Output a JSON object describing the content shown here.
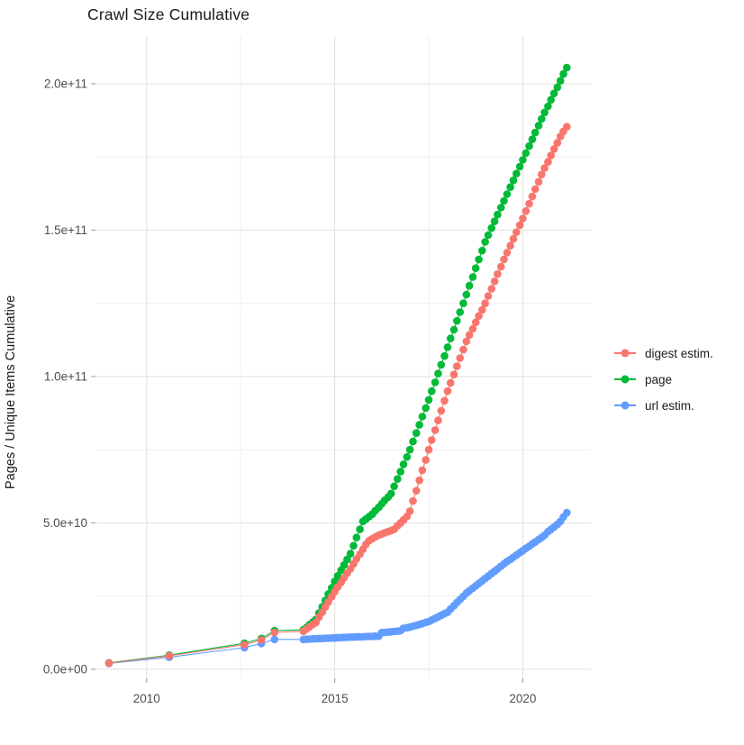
{
  "figure": {
    "title": "Crawl Size Cumulative",
    "y_axis_title": "Pages / Unique Items Cumulative"
  },
  "legend": {
    "position": "right",
    "items": [
      {
        "label": "digest estim.",
        "color": "#F8766D"
      },
      {
        "label": "page",
        "color": "#00BA38"
      },
      {
        "label": "url estim.",
        "color": "#619CFF"
      }
    ]
  },
  "colors": {
    "grid_major": "#e2e2e2",
    "grid_minor": "#efefef",
    "tick_mark": "#a8a8a8",
    "tick_label": "#4d4d4d",
    "title_text": "#1a1a1a"
  },
  "chart_data": {
    "type": "line",
    "title": "Crawl Size Cumulative",
    "xlabel": "",
    "ylabel": "Pages / Unique Items Cumulative",
    "note": "points are [year, cumulative items]; values stored in billions (1e9)",
    "value_unit_e9": true,
    "x_domain": [
      2008.64,
      2021.81
    ],
    "y_domain_e9": [
      -3.1,
      216.3
    ],
    "grid": true,
    "legend_position": "right",
    "x_ticks": [
      {
        "value": 2010,
        "label": "2010"
      },
      {
        "value": 2015,
        "label": "2015"
      },
      {
        "value": 2020,
        "label": "2020"
      }
    ],
    "x_minor": [
      2012.5,
      2017.5
    ],
    "y_ticks": [
      {
        "value_e9": 0,
        "label": "0.0e+00"
      },
      {
        "value_e9": 50,
        "label": "5.0e+10"
      },
      {
        "value_e9": 100,
        "label": "1.0e+11"
      },
      {
        "value_e9": 150,
        "label": "1.5e+11"
      },
      {
        "value_e9": 200,
        "label": "2.0e+11"
      }
    ],
    "y_minor_e9": [
      25,
      75,
      125,
      175
    ],
    "draw_order": [
      "page",
      "url estim.",
      "digest estim."
    ],
    "series": [
      {
        "name": "digest estim.",
        "color": "#F8766D",
        "points": [
          [
            2009.0,
            2.1
          ],
          [
            2010.6,
            4.6
          ],
          [
            2012.6,
            8.4
          ],
          [
            2013.05,
            10
          ],
          [
            2013.4,
            12.6
          ],
          [
            2014.17,
            13
          ],
          [
            2014.25,
            13.8
          ],
          [
            2014.33,
            14.5
          ],
          [
            2014.42,
            15.3
          ],
          [
            2014.5,
            16
          ],
          [
            2014.58,
            17.8
          ],
          [
            2014.67,
            19.5
          ],
          [
            2014.75,
            21.3
          ],
          [
            2014.83,
            23
          ],
          [
            2014.92,
            24.8
          ],
          [
            2015.0,
            26.5
          ],
          [
            2015.08,
            28.1
          ],
          [
            2015.17,
            29.7
          ],
          [
            2015.25,
            31.2
          ],
          [
            2015.33,
            32.8
          ],
          [
            2015.42,
            34.3
          ],
          [
            2015.5,
            36
          ],
          [
            2015.58,
            37.7
          ],
          [
            2015.67,
            39.3
          ],
          [
            2015.75,
            41
          ],
          [
            2015.83,
            42.7
          ],
          [
            2015.92,
            44
          ],
          [
            2016.0,
            44.6
          ],
          [
            2016.08,
            45.2
          ],
          [
            2016.17,
            45.8
          ],
          [
            2016.25,
            46.2
          ],
          [
            2016.33,
            46.6
          ],
          [
            2016.42,
            47
          ],
          [
            2016.5,
            47.4
          ],
          [
            2016.58,
            47.8
          ],
          [
            2016.67,
            49
          ],
          [
            2016.75,
            50
          ],
          [
            2016.83,
            51
          ],
          [
            2016.92,
            52.2
          ],
          [
            2017.0,
            54
          ],
          [
            2017.08,
            57.5
          ],
          [
            2017.17,
            61
          ],
          [
            2017.25,
            64.5
          ],
          [
            2017.33,
            68
          ],
          [
            2017.42,
            71.5
          ],
          [
            2017.5,
            75
          ],
          [
            2017.58,
            78.3
          ],
          [
            2017.67,
            81.7
          ],
          [
            2017.75,
            85
          ],
          [
            2017.83,
            88.3
          ],
          [
            2017.92,
            91.7
          ],
          [
            2018.0,
            95
          ],
          [
            2018.08,
            97.8
          ],
          [
            2018.17,
            100.7
          ],
          [
            2018.25,
            103.5
          ],
          [
            2018.33,
            106.3
          ],
          [
            2018.42,
            109.2
          ],
          [
            2018.5,
            112
          ],
          [
            2018.58,
            114.2
          ],
          [
            2018.67,
            116.3
          ],
          [
            2018.75,
            118.5
          ],
          [
            2018.83,
            120.7
          ],
          [
            2018.92,
            122.8
          ],
          [
            2019.0,
            125
          ],
          [
            2019.08,
            127.5
          ],
          [
            2019.17,
            130
          ],
          [
            2019.25,
            132.5
          ],
          [
            2019.33,
            135
          ],
          [
            2019.42,
            137.5
          ],
          [
            2019.5,
            140
          ],
          [
            2019.58,
            142.3
          ],
          [
            2019.67,
            144.7
          ],
          [
            2019.75,
            147
          ],
          [
            2019.83,
            149.3
          ],
          [
            2019.92,
            151.7
          ],
          [
            2020.0,
            154
          ],
          [
            2020.08,
            156.5
          ],
          [
            2020.17,
            159
          ],
          [
            2020.25,
            161.5
          ],
          [
            2020.33,
            164
          ],
          [
            2020.42,
            166.5
          ],
          [
            2020.5,
            169
          ],
          [
            2020.58,
            171.2
          ],
          [
            2020.67,
            173.3
          ],
          [
            2020.75,
            175.5
          ],
          [
            2020.83,
            177.7
          ],
          [
            2020.92,
            179.8
          ],
          [
            2021.0,
            182
          ],
          [
            2021.08,
            183.7
          ],
          [
            2021.17,
            185.3
          ]
        ]
      },
      {
        "name": "page",
        "color": "#00BA38",
        "points": [
          [
            2009.0,
            2.2
          ],
          [
            2010.6,
            4.8
          ],
          [
            2012.6,
            8.9
          ],
          [
            2013.05,
            10.5
          ],
          [
            2013.4,
            13.2
          ],
          [
            2014.17,
            13.5
          ],
          [
            2014.25,
            14.3
          ],
          [
            2014.33,
            15.2
          ],
          [
            2014.42,
            16.1
          ],
          [
            2014.5,
            17
          ],
          [
            2014.58,
            19.2
          ],
          [
            2014.67,
            21.3
          ],
          [
            2014.75,
            23.5
          ],
          [
            2014.83,
            25.7
          ],
          [
            2014.92,
            27.8
          ],
          [
            2015.0,
            30
          ],
          [
            2015.08,
            31.9
          ],
          [
            2015.17,
            33.8
          ],
          [
            2015.25,
            35.6
          ],
          [
            2015.33,
            37.5
          ],
          [
            2015.42,
            39.5
          ],
          [
            2015.5,
            42.2
          ],
          [
            2015.58,
            45
          ],
          [
            2015.67,
            47.8
          ],
          [
            2015.75,
            50.5
          ],
          [
            2015.83,
            51.3
          ],
          [
            2015.92,
            52.2
          ],
          [
            2016.0,
            53
          ],
          [
            2016.08,
            54.2
          ],
          [
            2016.17,
            55.3
          ],
          [
            2016.25,
            56.5
          ],
          [
            2016.33,
            57.7
          ],
          [
            2016.42,
            58.8
          ],
          [
            2016.5,
            60
          ],
          [
            2016.58,
            62.5
          ],
          [
            2016.67,
            65
          ],
          [
            2016.75,
            67.5
          ],
          [
            2016.83,
            70
          ],
          [
            2016.92,
            72.5
          ],
          [
            2017.0,
            75
          ],
          [
            2017.08,
            77.8
          ],
          [
            2017.17,
            80.7
          ],
          [
            2017.25,
            83.5
          ],
          [
            2017.33,
            86.3
          ],
          [
            2017.42,
            89.2
          ],
          [
            2017.5,
            92
          ],
          [
            2017.58,
            95
          ],
          [
            2017.67,
            98
          ],
          [
            2017.75,
            101
          ],
          [
            2017.83,
            104
          ],
          [
            2017.92,
            107
          ],
          [
            2018.0,
            110
          ],
          [
            2018.08,
            113
          ],
          [
            2018.17,
            116
          ],
          [
            2018.25,
            119
          ],
          [
            2018.33,
            122
          ],
          [
            2018.42,
            125
          ],
          [
            2018.5,
            128
          ],
          [
            2018.58,
            131
          ],
          [
            2018.67,
            134
          ],
          [
            2018.75,
            137
          ],
          [
            2018.83,
            140
          ],
          [
            2018.92,
            143
          ],
          [
            2019.0,
            146
          ],
          [
            2019.08,
            148.3
          ],
          [
            2019.17,
            150.7
          ],
          [
            2019.25,
            153
          ],
          [
            2019.33,
            155.3
          ],
          [
            2019.42,
            157.7
          ],
          [
            2019.5,
            160
          ],
          [
            2019.58,
            162.3
          ],
          [
            2019.67,
            164.7
          ],
          [
            2019.75,
            167
          ],
          [
            2019.83,
            169.3
          ],
          [
            2019.92,
            171.7
          ],
          [
            2020.0,
            174
          ],
          [
            2020.08,
            176.3
          ],
          [
            2020.17,
            178.7
          ],
          [
            2020.25,
            181
          ],
          [
            2020.33,
            183.3
          ],
          [
            2020.42,
            185.7
          ],
          [
            2020.5,
            188
          ],
          [
            2020.58,
            190.2
          ],
          [
            2020.67,
            192.3
          ],
          [
            2020.75,
            194.5
          ],
          [
            2020.83,
            196.7
          ],
          [
            2020.92,
            198.8
          ],
          [
            2021.0,
            201
          ],
          [
            2021.08,
            203.3
          ],
          [
            2021.17,
            205.5
          ]
        ]
      },
      {
        "name": "url estim.",
        "color": "#619CFF",
        "points": [
          [
            2009.0,
            2.0
          ],
          [
            2010.6,
            4.1
          ],
          [
            2012.6,
            7.4
          ],
          [
            2013.05,
            8.8
          ],
          [
            2013.4,
            10.2
          ],
          [
            2014.17,
            10.2
          ],
          [
            2014.25,
            10.3
          ],
          [
            2014.33,
            10.3
          ],
          [
            2014.42,
            10.4
          ],
          [
            2014.5,
            10.4
          ],
          [
            2014.58,
            10.5
          ],
          [
            2014.67,
            10.5
          ],
          [
            2014.75,
            10.6
          ],
          [
            2014.83,
            10.6
          ],
          [
            2014.92,
            10.7
          ],
          [
            2015.0,
            10.7
          ],
          [
            2015.08,
            10.8
          ],
          [
            2015.17,
            10.8
          ],
          [
            2015.25,
            10.9
          ],
          [
            2015.33,
            10.9
          ],
          [
            2015.42,
            11
          ],
          [
            2015.5,
            11
          ],
          [
            2015.58,
            11.1
          ],
          [
            2015.67,
            11.1
          ],
          [
            2015.75,
            11.1
          ],
          [
            2015.83,
            11.2
          ],
          [
            2015.92,
            11.2
          ],
          [
            2016.0,
            11.2
          ],
          [
            2016.08,
            11.3
          ],
          [
            2016.17,
            11.3
          ],
          [
            2016.25,
            12.5
          ],
          [
            2016.33,
            12.6
          ],
          [
            2016.42,
            12.7
          ],
          [
            2016.5,
            12.8
          ],
          [
            2016.58,
            12.9
          ],
          [
            2016.67,
            13
          ],
          [
            2016.75,
            13.2
          ],
          [
            2016.83,
            14
          ],
          [
            2016.92,
            14.2
          ],
          [
            2017.0,
            14.4
          ],
          [
            2017.08,
            14.7
          ],
          [
            2017.17,
            15
          ],
          [
            2017.25,
            15.3
          ],
          [
            2017.33,
            15.6
          ],
          [
            2017.42,
            16
          ],
          [
            2017.5,
            16.3
          ],
          [
            2017.58,
            16.8
          ],
          [
            2017.67,
            17.4
          ],
          [
            2017.75,
            17.9
          ],
          [
            2017.83,
            18.4
          ],
          [
            2017.92,
            19
          ],
          [
            2018.0,
            19.5
          ],
          [
            2018.08,
            20.6
          ],
          [
            2018.17,
            21.7
          ],
          [
            2018.25,
            22.8
          ],
          [
            2018.33,
            23.8
          ],
          [
            2018.42,
            24.9
          ],
          [
            2018.5,
            26
          ],
          [
            2018.58,
            26.8
          ],
          [
            2018.67,
            27.7
          ],
          [
            2018.75,
            28.5
          ],
          [
            2018.83,
            29.3
          ],
          [
            2018.92,
            30.2
          ],
          [
            2019.0,
            31
          ],
          [
            2019.08,
            31.8
          ],
          [
            2019.17,
            32.7
          ],
          [
            2019.25,
            33.5
          ],
          [
            2019.33,
            34.3
          ],
          [
            2019.42,
            35.2
          ],
          [
            2019.5,
            36
          ],
          [
            2019.58,
            36.8
          ],
          [
            2019.67,
            37.5
          ],
          [
            2019.75,
            38.3
          ],
          [
            2019.83,
            39
          ],
          [
            2019.92,
            39.8
          ],
          [
            2020.0,
            40.5
          ],
          [
            2020.08,
            41.3
          ],
          [
            2020.17,
            42
          ],
          [
            2020.25,
            42.8
          ],
          [
            2020.33,
            43.5
          ],
          [
            2020.42,
            44.3
          ],
          [
            2020.5,
            45
          ],
          [
            2020.58,
            45.8
          ],
          [
            2020.67,
            47
          ],
          [
            2020.75,
            47.8
          ],
          [
            2020.83,
            48.6
          ],
          [
            2020.92,
            49.5
          ],
          [
            2021.0,
            50.5
          ],
          [
            2021.08,
            52
          ],
          [
            2021.17,
            53.5
          ]
        ]
      }
    ]
  }
}
